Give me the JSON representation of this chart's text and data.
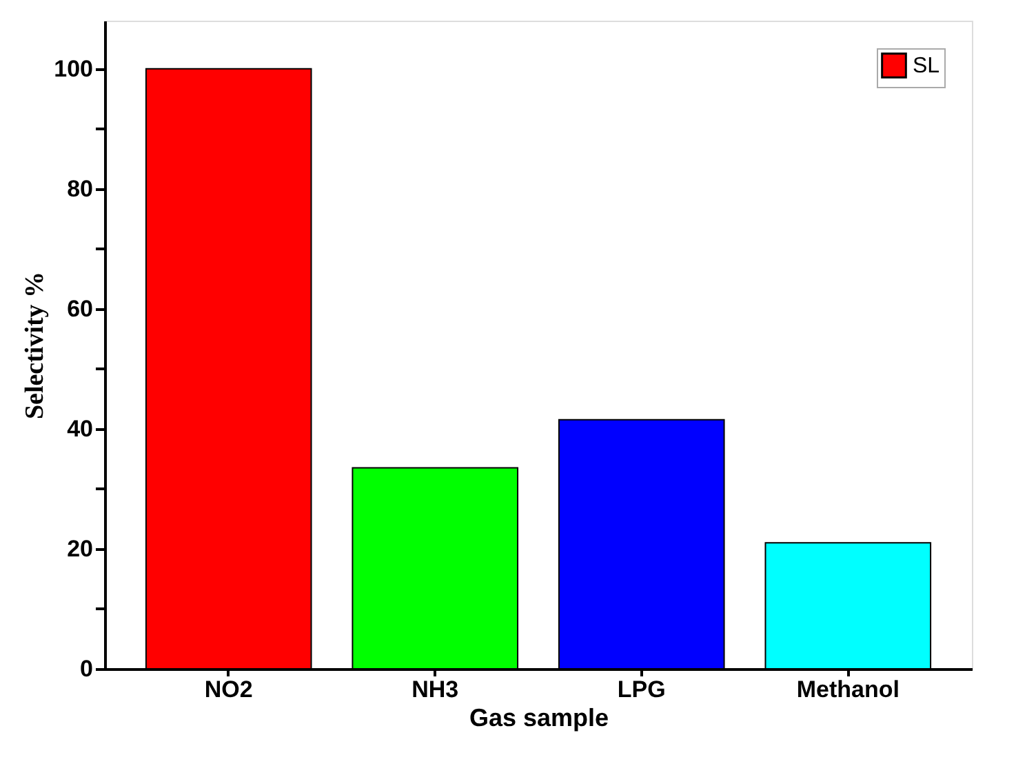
{
  "chart_data": {
    "type": "bar",
    "xlabel": "Gas sample",
    "ylabel": "Selectivity %",
    "categories": [
      "NO2",
      "NH3",
      "LPG",
      "Methanol"
    ],
    "series": [
      {
        "name": "SL",
        "colors": [
          "#ff0000",
          "#00ff00",
          "#0000ff",
          "#00ffff"
        ],
        "values": [
          100,
          33.5,
          41.5,
          21
        ]
      }
    ],
    "ylim": [
      0,
      108
    ],
    "yticks": [
      0,
      {
        "value": 10,
        "label": null
      },
      20,
      {
        "value": 30,
        "label": null
      },
      40,
      {
        "value": 50,
        "label": null
      },
      60,
      {
        "value": 70,
        "label": null
      },
      80,
      {
        "value": 90,
        "label": null
      },
      100
    ],
    "legend": "top right",
    "grid": false
  }
}
